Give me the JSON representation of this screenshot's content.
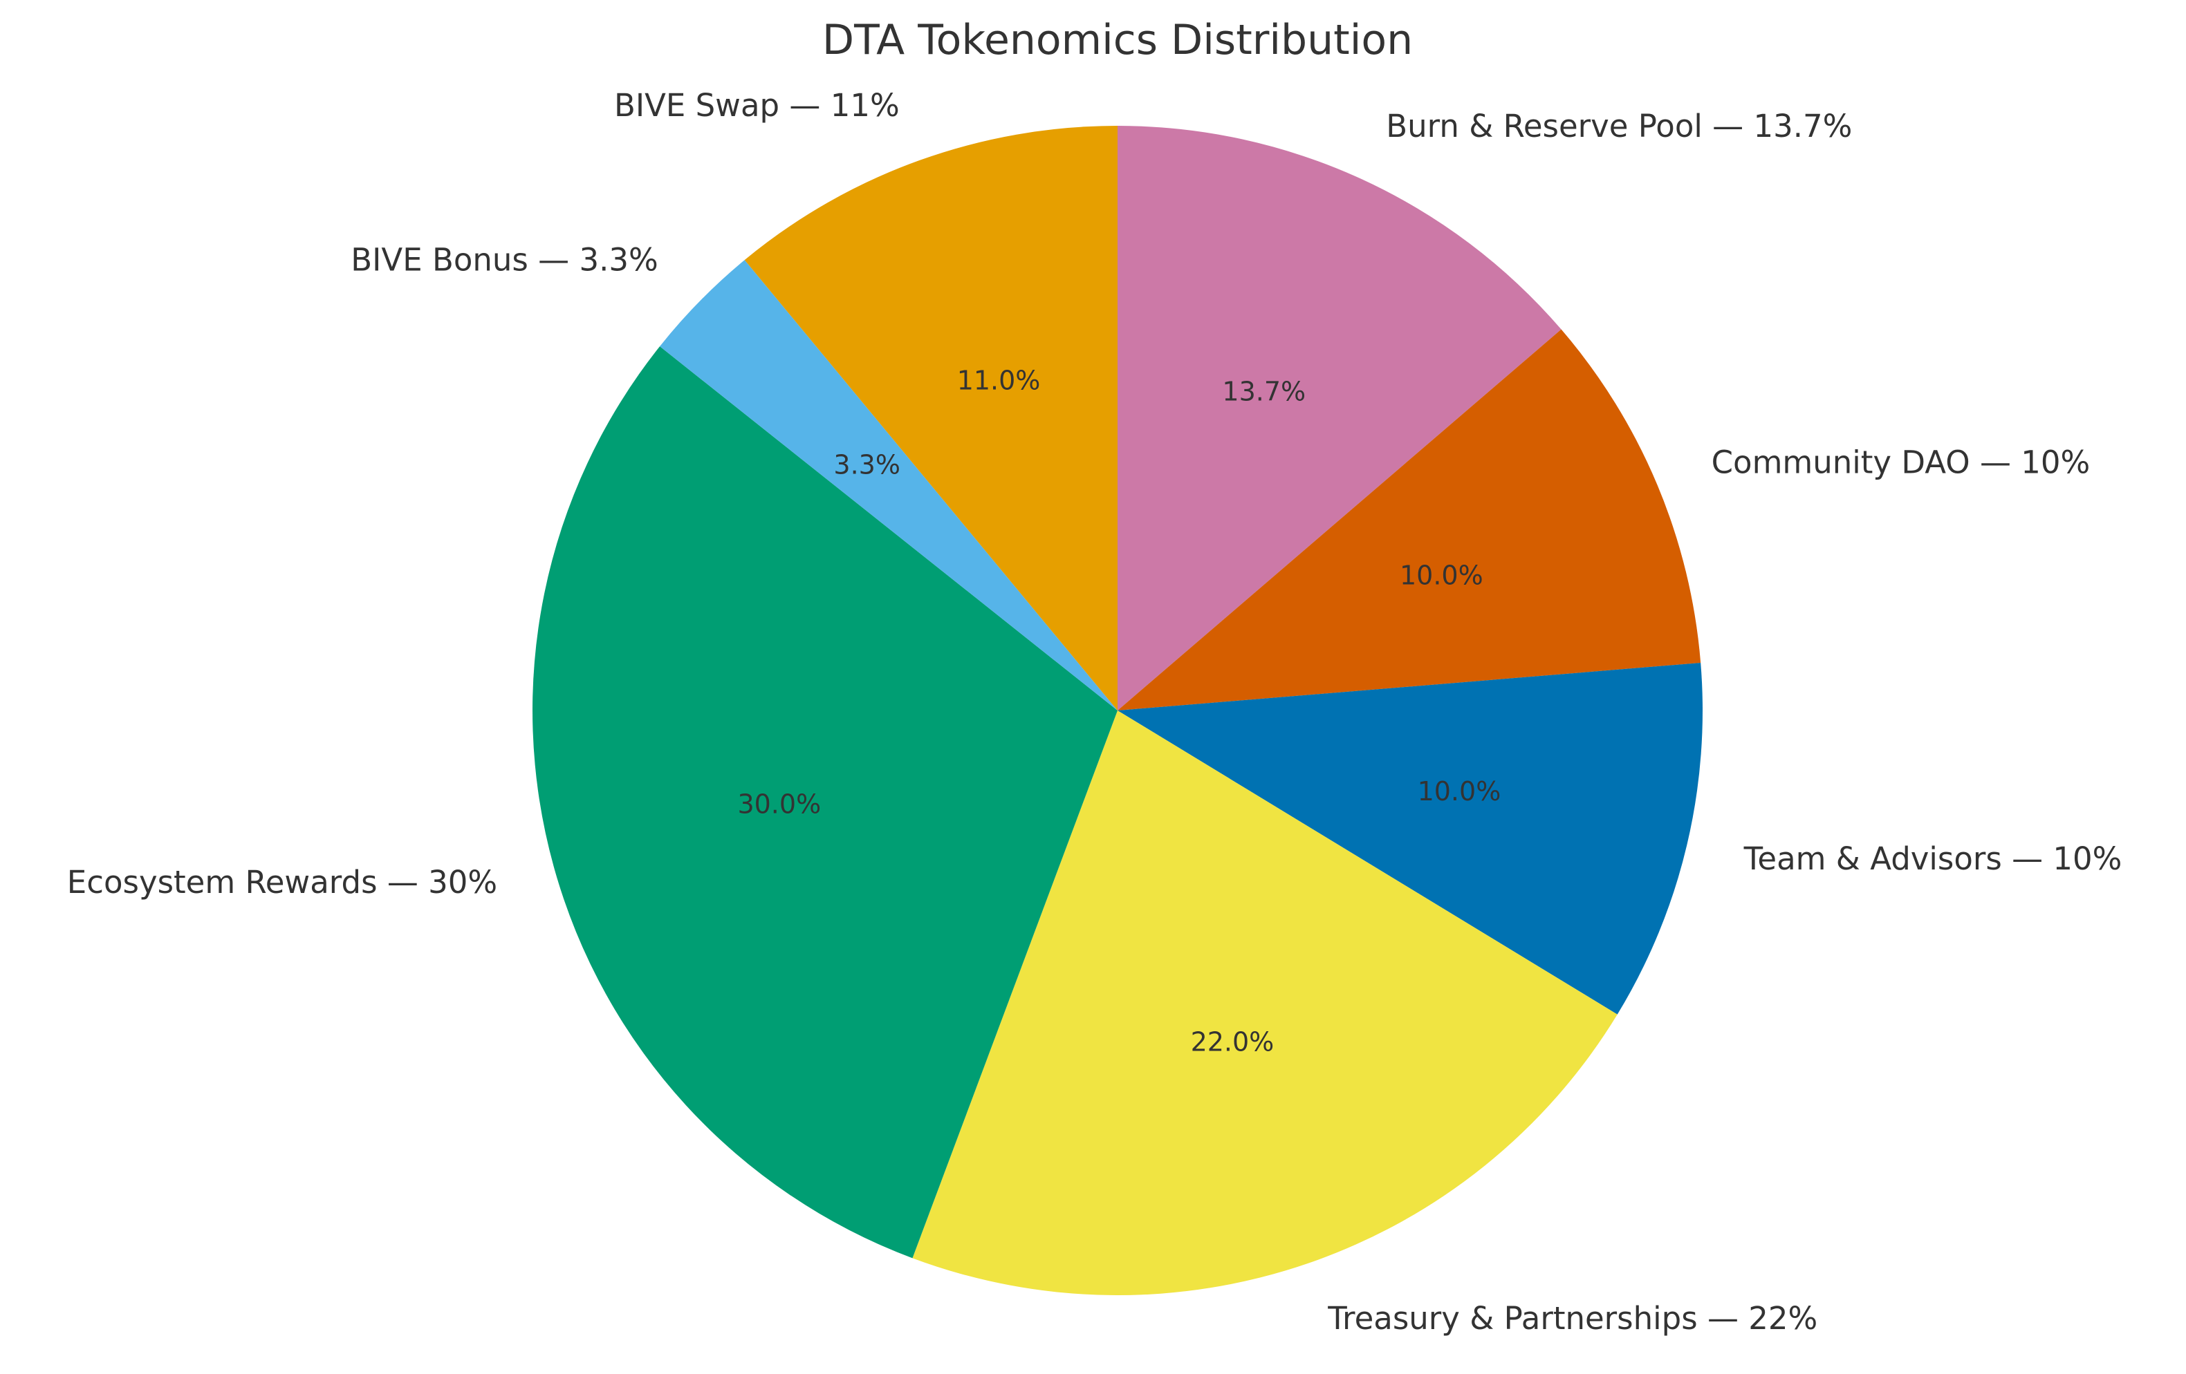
{
  "chart_data": {
    "type": "pie",
    "title": "DTA Tokenomics Distribution",
    "start_angle_deg": 90,
    "direction": "clockwise",
    "slices": [
      {
        "label": "Burn & Reserve Pool — 13.7%",
        "value": 13.7,
        "pct_label": "13.7%",
        "color": "#CC79A7"
      },
      {
        "label": "Community DAO — 10%",
        "value": 10.0,
        "pct_label": "10.0%",
        "color": "#D55E00"
      },
      {
        "label": "Team & Advisors — 10%",
        "value": 10.0,
        "pct_label": "10.0%",
        "color": "#0072B2"
      },
      {
        "label": "Treasury & Partnerships — 22%",
        "value": 22.0,
        "pct_label": "22.0%",
        "color": "#F0E442"
      },
      {
        "label": "Ecosystem Rewards — 30%",
        "value": 30.0,
        "pct_label": "30.0%",
        "color": "#009E73"
      },
      {
        "label": "BIVE Bonus — 3.3%",
        "value": 3.3,
        "pct_label": "3.3%",
        "color": "#56B4E9"
      },
      {
        "label": "BIVE Swap — 11%",
        "value": 11.0,
        "pct_label": "11.0%",
        "color": "#E69F00"
      }
    ]
  }
}
